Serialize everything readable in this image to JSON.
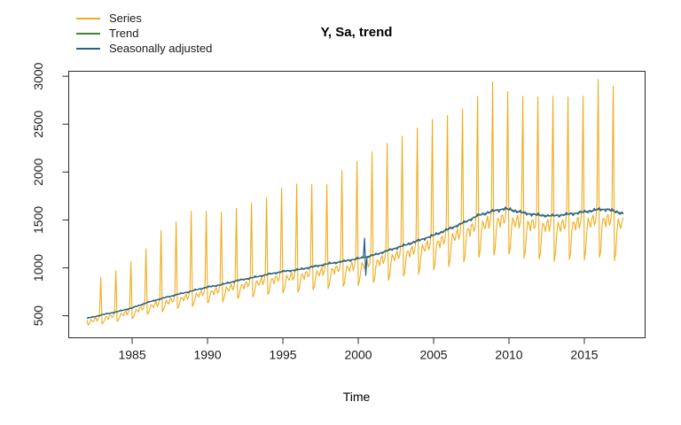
{
  "figure": {
    "title": "Y, Sa, trend",
    "xlabel": "Time"
  },
  "legend": {
    "items": [
      {
        "label": "Series",
        "color": "#EFAC1C"
      },
      {
        "label": "Trend",
        "color": "#44803C"
      },
      {
        "label": "Seasonally adjusted",
        "color": "#2B608E"
      }
    ]
  },
  "chart_data": {
    "type": "line",
    "title": "Y, Sa, trend",
    "xlabel": "Time",
    "ylabel": "",
    "x_ticks": [
      1985,
      1990,
      1995,
      2000,
      2005,
      2010,
      2015
    ],
    "y_ticks": [
      500,
      1000,
      1500,
      2000,
      2500,
      3000
    ],
    "xlim": [
      1980.79,
      2019.03
    ],
    "ylim": [
      270,
      3052
    ],
    "grid": false,
    "legend_position": "top-left-outside",
    "frequency": "monthly",
    "time_range": [
      1982.0,
      2017.58
    ],
    "series_names": [
      "Series",
      "Trend",
      "Seasonally adjusted"
    ],
    "trend_points": [
      [
        1982.0,
        475
      ],
      [
        1982.5,
        490
      ],
      [
        1983.0,
        510
      ],
      [
        1984.0,
        542
      ],
      [
        1985.0,
        582
      ],
      [
        1986.0,
        638
      ],
      [
        1987.0,
        682
      ],
      [
        1988.0,
        722
      ],
      [
        1989.0,
        760
      ],
      [
        1990.0,
        800
      ],
      [
        1990.5,
        812
      ],
      [
        1991.0,
        828
      ],
      [
        1992.0,
        868
      ],
      [
        1993.0,
        898
      ],
      [
        1994.0,
        932
      ],
      [
        1995.0,
        962
      ],
      [
        1996.0,
        980
      ],
      [
        1997.0,
        1012
      ],
      [
        1998.0,
        1042
      ],
      [
        1999.0,
        1068
      ],
      [
        2000.0,
        1098
      ],
      [
        2000.5,
        1112
      ],
      [
        2001.0,
        1132
      ],
      [
        2002.0,
        1182
      ],
      [
        2003.0,
        1232
      ],
      [
        2004.0,
        1285
      ],
      [
        2005.0,
        1340
      ],
      [
        2006.0,
        1405
      ],
      [
        2007.0,
        1472
      ],
      [
        2008.0,
        1550
      ],
      [
        2009.0,
        1595
      ],
      [
        2009.7,
        1618
      ],
      [
        2010.3,
        1600
      ],
      [
        2011.0,
        1572
      ],
      [
        2012.0,
        1550
      ],
      [
        2012.8,
        1543
      ],
      [
        2013.5,
        1552
      ],
      [
        2014.5,
        1572
      ],
      [
        2015.3,
        1592
      ],
      [
        2016.0,
        1610
      ],
      [
        2016.5,
        1612
      ],
      [
        2017.0,
        1590
      ],
      [
        2017.58,
        1568
      ]
    ],
    "december_peaks": {
      "start_year": 1982,
      "values": [
        900,
        970,
        1065,
        1200,
        1390,
        1480,
        1590,
        1590,
        1580,
        1620,
        1675,
        1730,
        1830,
        1875,
        1870,
        1870,
        2015,
        2110,
        2210,
        2300,
        2375,
        2460,
        2550,
        2590,
        2655,
        2790,
        2940,
        2840,
        2790,
        2785,
        2790,
        2785,
        2790,
        2965,
        2895
      ]
    },
    "seasonal_factors_mar_to_nov": [
      0.88,
      0.95,
      0.93,
      0.89,
      0.95,
      0.97,
      0.9,
      0.93,
      1.03
    ],
    "jan_factor_range": [
      0.82,
      0.68
    ],
    "feb_factor_range": [
      0.84,
      0.73
    ],
    "first_point_factor": 0.96,
    "sa_outliers": [
      {
        "year": 2000.4167,
        "delta": 200
      },
      {
        "year": 2000.5,
        "delta": -190
      }
    ],
    "sa_noise_rel": 0.016,
    "series_noise_rel": 0.008
  }
}
